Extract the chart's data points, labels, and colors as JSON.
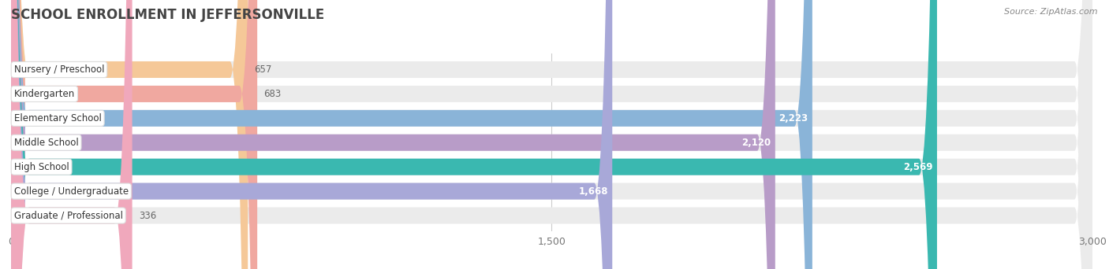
{
  "title": "SCHOOL ENROLLMENT IN JEFFERSONVILLE",
  "source": "Source: ZipAtlas.com",
  "categories": [
    "Nursery / Preschool",
    "Kindergarten",
    "Elementary School",
    "Middle School",
    "High School",
    "College / Undergraduate",
    "Graduate / Professional"
  ],
  "values": [
    657,
    683,
    2223,
    2120,
    2569,
    1668,
    336
  ],
  "bar_colors": [
    "#f5c898",
    "#f0a8a0",
    "#8ab4d8",
    "#b89cc8",
    "#3ab8b0",
    "#a8a8d8",
    "#f0a8bc"
  ],
  "bar_bg_color": "#ebebeb",
  "xlim_min": 0,
  "xlim_max": 3000,
  "xticks": [
    0,
    1500,
    3000
  ],
  "title_fontsize": 12,
  "label_fontsize": 8.5,
  "value_fontsize": 8.5,
  "background_color": "#ffffff",
  "title_color": "#444444",
  "source_color": "#888888",
  "value_color_inside": "#ffffff",
  "value_color_outside": "#666666",
  "label_bg_color": "#ffffff",
  "bar_height": 0.68,
  "bar_gap": 0.32
}
